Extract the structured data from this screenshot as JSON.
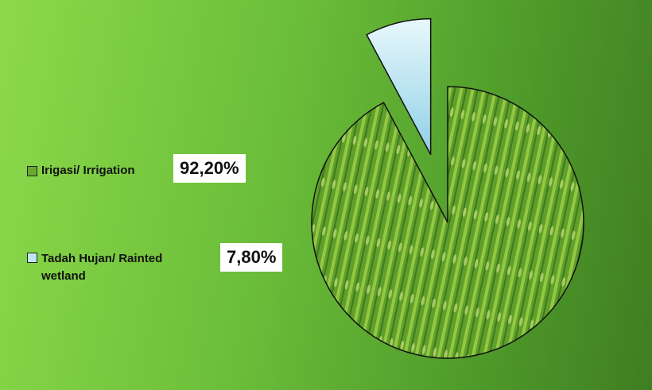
{
  "chart_data": {
    "type": "pie",
    "categories": [
      "Irigasi/ Irrigation",
      "Tadah Hujan/ Rainted wetland"
    ],
    "values": [
      92.2,
      7.8
    ],
    "value_labels": [
      "92,20%",
      "7,80%"
    ],
    "colors": [
      "#6aa832",
      "#bfe6f2"
    ]
  }
}
